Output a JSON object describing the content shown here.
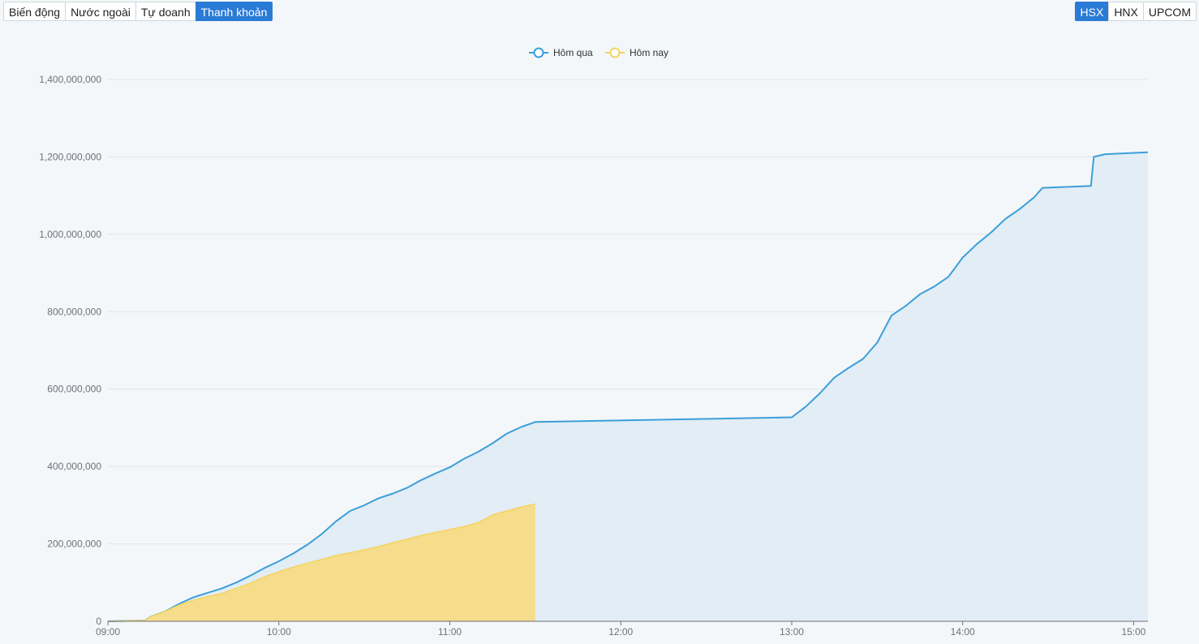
{
  "left_tabs": [
    {
      "label": "Biến động",
      "active": false
    },
    {
      "label": "Nước ngoài",
      "active": false
    },
    {
      "label": "Tự doanh",
      "active": false
    },
    {
      "label": "Thanh khoản",
      "active": true
    }
  ],
  "right_tabs": [
    {
      "label": "HSX",
      "active": true
    },
    {
      "label": "HNX",
      "active": false
    },
    {
      "label": "UPCOM",
      "active": false
    }
  ],
  "colors": {
    "active_tab": "#2a7bd6",
    "yesterday_line": "#3b9fd9",
    "yesterday_fill": "#e2edf6",
    "today_line": "#f5d45e",
    "today_fill": "#f5dc85"
  },
  "chart_data": {
    "type": "area",
    "legend": {
      "position": "top-center",
      "items": [
        "Hôm qua",
        "Hôm nay"
      ]
    },
    "grid": true,
    "ylim": [
      0,
      1400000000
    ],
    "yticks": [
      "0",
      "200,000,000",
      "400,000,000",
      "600,000,000",
      "800,000,000",
      "1,000,000,000",
      "1,200,000,000",
      "1,400,000,000"
    ],
    "xticks": [
      "09:00",
      "10:00",
      "11:00",
      "12:00",
      "13:00",
      "14:00",
      "15:00"
    ],
    "xlim": [
      "09:00",
      "15:05"
    ],
    "series": [
      {
        "name": "Hôm qua",
        "points": [
          [
            "09:00",
            0
          ],
          [
            "09:13",
            2000000
          ],
          [
            "09:15",
            12000000
          ],
          [
            "09:20",
            25000000
          ],
          [
            "09:25",
            45000000
          ],
          [
            "09:30",
            62000000
          ],
          [
            "09:40",
            85000000
          ],
          [
            "09:45",
            100000000
          ],
          [
            "09:50",
            118000000
          ],
          [
            "09:55",
            138000000
          ],
          [
            "10:00",
            155000000
          ],
          [
            "10:05",
            175000000
          ],
          [
            "10:10",
            198000000
          ],
          [
            "10:15",
            225000000
          ],
          [
            "10:20",
            258000000
          ],
          [
            "10:25",
            285000000
          ],
          [
            "10:30",
            300000000
          ],
          [
            "10:35",
            318000000
          ],
          [
            "10:40",
            330000000
          ],
          [
            "10:45",
            345000000
          ],
          [
            "10:50",
            365000000
          ],
          [
            "10:55",
            382000000
          ],
          [
            "11:00",
            398000000
          ],
          [
            "11:05",
            420000000
          ],
          [
            "11:10",
            438000000
          ],
          [
            "11:15",
            460000000
          ],
          [
            "11:20",
            485000000
          ],
          [
            "11:25",
            502000000
          ],
          [
            "11:30",
            515000000
          ],
          [
            "13:00",
            527000000
          ],
          [
            "13:05",
            555000000
          ],
          [
            "13:10",
            590000000
          ],
          [
            "13:15",
            630000000
          ],
          [
            "13:20",
            655000000
          ],
          [
            "13:25",
            678000000
          ],
          [
            "13:30",
            720000000
          ],
          [
            "13:35",
            790000000
          ],
          [
            "13:40",
            815000000
          ],
          [
            "13:45",
            845000000
          ],
          [
            "13:50",
            865000000
          ],
          [
            "13:55",
            890000000
          ],
          [
            "14:00",
            940000000
          ],
          [
            "14:05",
            975000000
          ],
          [
            "14:10",
            1005000000
          ],
          [
            "14:15",
            1040000000
          ],
          [
            "14:20",
            1065000000
          ],
          [
            "14:25",
            1095000000
          ],
          [
            "14:28",
            1120000000
          ],
          [
            "14:45",
            1125000000
          ],
          [
            "14:46",
            1200000000
          ],
          [
            "14:50",
            1207000000
          ],
          [
            "15:05",
            1212000000
          ]
        ]
      },
      {
        "name": "Hôm nay",
        "points": [
          [
            "09:00",
            0
          ],
          [
            "09:13",
            2000000
          ],
          [
            "09:15",
            12000000
          ],
          [
            "09:20",
            25000000
          ],
          [
            "09:25",
            42000000
          ],
          [
            "09:30",
            55000000
          ],
          [
            "09:40",
            72000000
          ],
          [
            "09:45",
            85000000
          ],
          [
            "09:50",
            98000000
          ],
          [
            "09:55",
            115000000
          ],
          [
            "10:00",
            128000000
          ],
          [
            "10:05",
            140000000
          ],
          [
            "10:10",
            150000000
          ],
          [
            "10:15",
            160000000
          ],
          [
            "10:20",
            170000000
          ],
          [
            "10:25",
            177000000
          ],
          [
            "10:30",
            185000000
          ],
          [
            "10:35",
            193000000
          ],
          [
            "10:40",
            203000000
          ],
          [
            "10:45",
            212000000
          ],
          [
            "10:50",
            222000000
          ],
          [
            "10:55",
            230000000
          ],
          [
            "11:00",
            237000000
          ],
          [
            "11:05",
            245000000
          ],
          [
            "11:10",
            255000000
          ],
          [
            "11:15",
            275000000
          ],
          [
            "11:20",
            285000000
          ],
          [
            "11:25",
            295000000
          ],
          [
            "11:30",
            303000000
          ]
        ]
      }
    ]
  }
}
